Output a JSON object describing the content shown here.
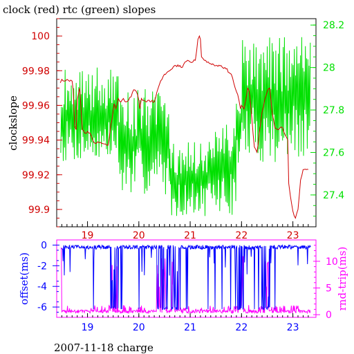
{
  "colors": {
    "clock": "#d00000",
    "rtc": "#00e000",
    "offset": "#0000ff",
    "rndtrip": "#ff00ff",
    "frame": "#000000",
    "frame_lower": "#ff00ff"
  },
  "chart_data": [
    {
      "type": "line",
      "title": "clock (red) rtc (green) slopes",
      "ylabel": "clockslope",
      "xlabel": "",
      "xlim": [
        18.4,
        23.45
      ],
      "ylim": [
        99.89,
        100.01
      ],
      "y2lim": [
        27.25,
        28.23
      ],
      "x_ticks": [
        19,
        20,
        21,
        22,
        23
      ],
      "y_ticks": [
        99.9,
        99.92,
        99.94,
        99.96,
        99.98,
        100
      ],
      "y_tick_labels": [
        "99.9",
        "99.92",
        "99.94",
        "99.96",
        "99.98",
        "100"
      ],
      "y2_ticks": [
        27.4,
        27.6,
        27.8,
        28.0,
        28.2
      ],
      "y2_tick_labels": [
        "27.4",
        "27.6",
        "27.8",
        "28",
        "28.2"
      ],
      "series": [
        {
          "name": "clock",
          "axis": "left",
          "x": [
            18.47,
            18.5,
            18.55,
            18.6,
            18.7,
            18.72,
            18.75,
            18.78,
            18.8,
            18.85,
            18.9,
            18.95,
            19.0,
            19.05,
            19.1,
            19.15,
            19.2,
            19.3,
            19.4,
            19.5,
            19.52,
            19.55,
            19.6,
            19.65,
            19.7,
            19.75,
            19.8,
            19.85,
            19.9,
            19.95,
            20.0,
            20.02,
            20.05,
            20.1,
            20.15,
            20.2,
            20.3,
            20.4,
            20.45,
            20.5,
            20.6,
            20.7,
            20.8,
            20.85,
            20.9,
            20.95,
            21.0,
            21.05,
            21.1,
            21.15,
            21.18,
            21.2,
            21.22,
            21.25,
            21.3,
            21.4,
            21.5,
            21.6,
            21.7,
            21.8,
            21.9,
            21.95,
            21.98,
            22.0,
            22.05,
            22.1,
            22.12,
            22.15,
            22.2,
            22.25,
            22.3,
            22.32,
            22.35,
            22.4,
            22.45,
            22.5,
            22.55,
            22.6,
            22.65,
            22.7,
            22.72,
            22.75,
            22.8,
            22.85,
            22.9,
            22.92,
            22.95,
            23.0,
            23.05,
            23.1,
            23.15,
            23.2,
            23.3
          ],
          "values": [
            99.973,
            99.975,
            99.974,
            99.975,
            99.974,
            99.969,
            99.948,
            99.946,
            99.963,
            99.97,
            99.946,
            99.944,
            99.945,
            99.944,
            99.94,
            99.938,
            99.939,
            99.938,
            99.937,
            99.957,
            99.961,
            99.958,
            99.964,
            99.962,
            99.964,
            99.962,
            99.963,
            99.965,
            99.969,
            99.968,
            99.963,
            99.958,
            99.964,
            99.963,
            99.962,
            99.963,
            99.962,
            99.972,
            99.975,
            99.978,
            99.98,
            99.983,
            99.983,
            99.982,
            99.985,
            99.986,
            99.985,
            99.985,
            99.986,
            99.998,
            100.0,
            99.998,
            99.988,
            99.987,
            99.986,
            99.984,
            99.983,
            99.983,
            99.981,
            99.978,
            99.968,
            99.963,
            99.958,
            99.96,
            99.958,
            99.966,
            99.97,
            99.968,
            99.953,
            99.936,
            99.933,
            99.937,
            99.945,
            99.956,
            99.963,
            99.968,
            99.97,
            99.955,
            99.947,
            99.946,
            99.946,
            99.947,
            99.947,
            99.943,
            99.94,
            99.915,
            99.908,
            99.899,
            99.895,
            99.9,
            99.917,
            99.923,
            99.923
          ]
        }
      ]
    },
    {
      "type": "line",
      "title": "",
      "xlabel": "2007-11-18 charge",
      "ylabel": "offset(ms)",
      "y2label": "rnd-trip(ms)",
      "xlim": [
        18.4,
        23.45
      ],
      "ylim": [
        -7,
        0.5
      ],
      "y2lim": [
        -0.5,
        14
      ],
      "x_ticks": [
        19,
        20,
        21,
        22,
        23
      ],
      "y_ticks": [
        0,
        -2,
        -4,
        -6
      ],
      "y_tick_labels": [
        "0",
        "-2",
        "-4",
        "-6"
      ],
      "y2_ticks": [
        0,
        5,
        10
      ],
      "y2_tick_labels": [
        "0",
        "5",
        "10"
      ],
      "series": [
        {
          "name": "offset",
          "axis": "left"
        },
        {
          "name": "rnd-trip",
          "axis": "right"
        }
      ]
    }
  ]
}
